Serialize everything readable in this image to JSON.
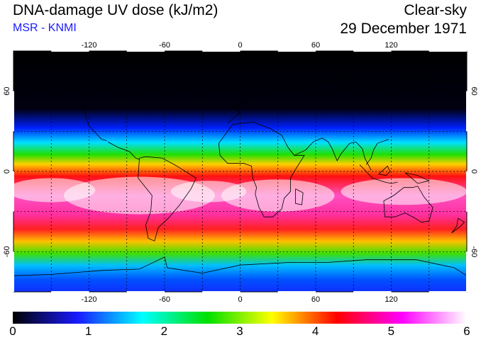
{
  "header": {
    "title": "DNA-damage UV dose (kJ/m2)",
    "source": "MSR - KNMI",
    "sky": "Clear-sky",
    "date": "29 December 1971"
  },
  "map": {
    "lon_ticks": [
      "-120",
      "-60",
      "0",
      "60",
      "120"
    ],
    "lat_ticks": [
      "60",
      "0",
      "-60"
    ],
    "lon_range": [
      -180,
      180
    ],
    "lat_range": [
      -90,
      90
    ],
    "gridlines": "dashed every 30 degrees"
  },
  "colorbar": {
    "min": 0,
    "max": 6,
    "labels": [
      "0",
      "1",
      "2",
      "3",
      "4",
      "5",
      "6"
    ],
    "colors": [
      "#000000",
      "#1a1aff",
      "#00ffff",
      "#00e000",
      "#ffff00",
      "#ff0000",
      "#ff00ff",
      "#ffffff"
    ]
  }
}
